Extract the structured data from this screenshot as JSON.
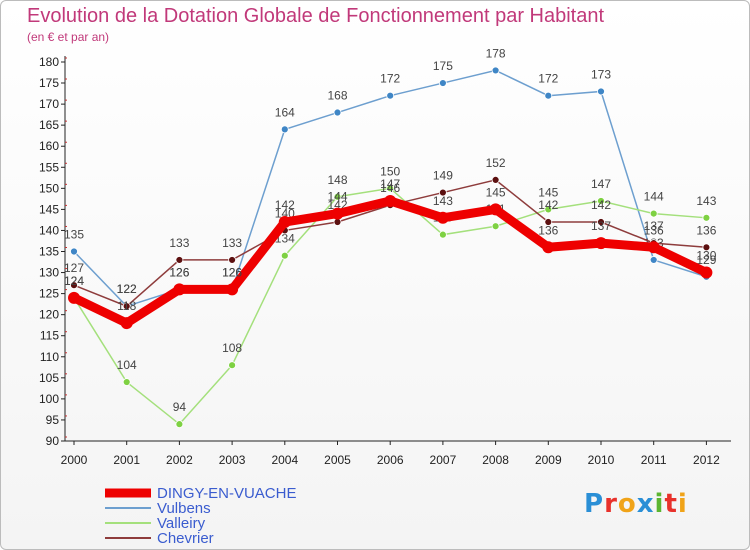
{
  "header": {
    "title": "Evolution de la Dotation Globale de Fonctionnement par Habitant",
    "subtitle": "(en € et par an)"
  },
  "logo": {
    "text": "Proxiti",
    "colors": [
      "#2a8fd6",
      "#e8312b",
      "#f0a318",
      "#2a8fd6",
      "#5bb531",
      "#e8312b",
      "#f0a318"
    ]
  },
  "chart_data": {
    "type": "line",
    "x": [
      "2000",
      "2001",
      "2002",
      "2003",
      "2004",
      "2005",
      "2006",
      "2007",
      "2008",
      "2009",
      "2010",
      "2011",
      "2012"
    ],
    "ylim": [
      90,
      180
    ],
    "yticks": [
      90,
      95,
      100,
      105,
      110,
      115,
      120,
      125,
      130,
      135,
      140,
      145,
      150,
      155,
      160,
      165,
      170,
      175,
      180
    ],
    "grid": false,
    "series": [
      {
        "name": "Vulbens",
        "color": "#6d9fcf",
        "marker": "#3f86c6",
        "values": [
          135,
          122,
          126,
          126,
          164,
          168,
          172,
          175,
          178,
          172,
          173,
          133,
          129
        ],
        "labels": [
          "135",
          "122",
          "126",
          "126",
          "164",
          "168",
          "172",
          "175",
          "178",
          "172",
          "173",
          "133",
          "129"
        ]
      },
      {
        "name": "Valleiry",
        "color": "#a4e07c",
        "marker": "#7ed142",
        "values": [
          124,
          104,
          94,
          108,
          134,
          148,
          150,
          139,
          141,
          145,
          147,
          144,
          143
        ],
        "labels": [
          "124",
          "104",
          "94",
          "108",
          "134",
          "148",
          "150",
          "139",
          "141",
          "145",
          "147",
          "144",
          "143"
        ]
      },
      {
        "name": "Chevrier",
        "color": "#8e3c3c",
        "marker": "#5c1010",
        "values": [
          127,
          122,
          133,
          133,
          140,
          142,
          146,
          149,
          152,
          142,
          142,
          137,
          136
        ],
        "labels": [
          "127",
          "122",
          "133",
          "133",
          "140",
          "142",
          "146",
          "149",
          "152",
          "142",
          "142",
          "137",
          "136"
        ]
      },
      {
        "name": "DINGY-EN-VUACHE",
        "color": "#ee0000",
        "marker": "#ee0000",
        "bold": true,
        "values": [
          124,
          118,
          126,
          126,
          142,
          144,
          147,
          143,
          145,
          136,
          137,
          136,
          130
        ],
        "labels": [
          "124",
          "118",
          "126",
          "126",
          "142",
          "144",
          "147",
          "143",
          "145",
          "136",
          "137",
          "136",
          "130"
        ]
      }
    ],
    "legend": [
      "DINGY-EN-VUACHE",
      "Vulbens",
      "Valleiry",
      "Chevrier"
    ],
    "legend_position": "bottom-left"
  }
}
